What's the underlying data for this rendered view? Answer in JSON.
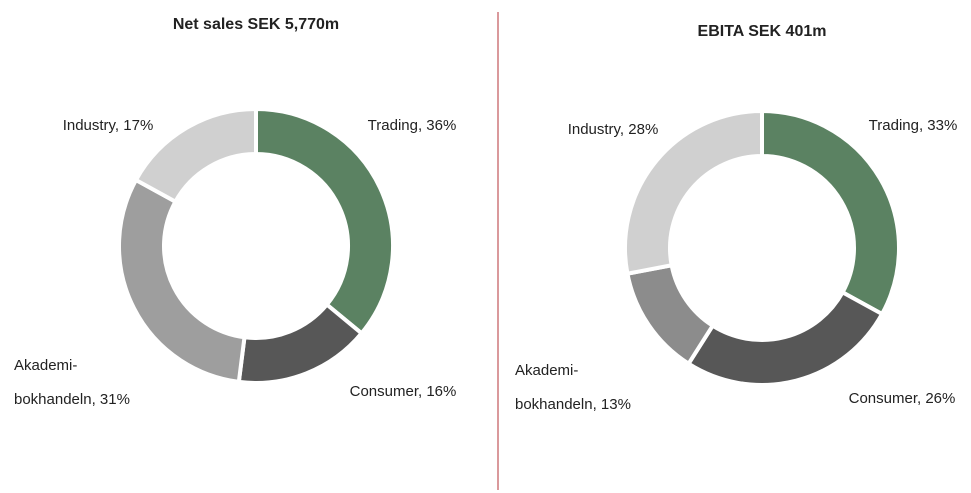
{
  "chart_data": [
    {
      "type": "donut",
      "title": "Net sales SEK 5,770m",
      "values": [
        36,
        16,
        31,
        17
      ],
      "value_labels": [
        "Trading, 36%",
        "Consumer, 16%",
        "Akademi-\nbokhandeln, 31%",
        "Industry, 17%"
      ],
      "colors": [
        "#5b8262",
        "#575757",
        "#9e9e9e",
        "#d0d0d0"
      ]
    },
    {
      "type": "donut",
      "title": "EBITA SEK 401m",
      "values": [
        33,
        26,
        13,
        28
      ],
      "value_labels": [
        "Trading, 33%",
        "Consumer, 26%",
        "Akademi-\nbokhandeln, 13%",
        "Industry, 28%"
      ],
      "colors": [
        "#5b8262",
        "#575757",
        "#8c8c8c",
        "#d0d0d0"
      ]
    }
  ]
}
